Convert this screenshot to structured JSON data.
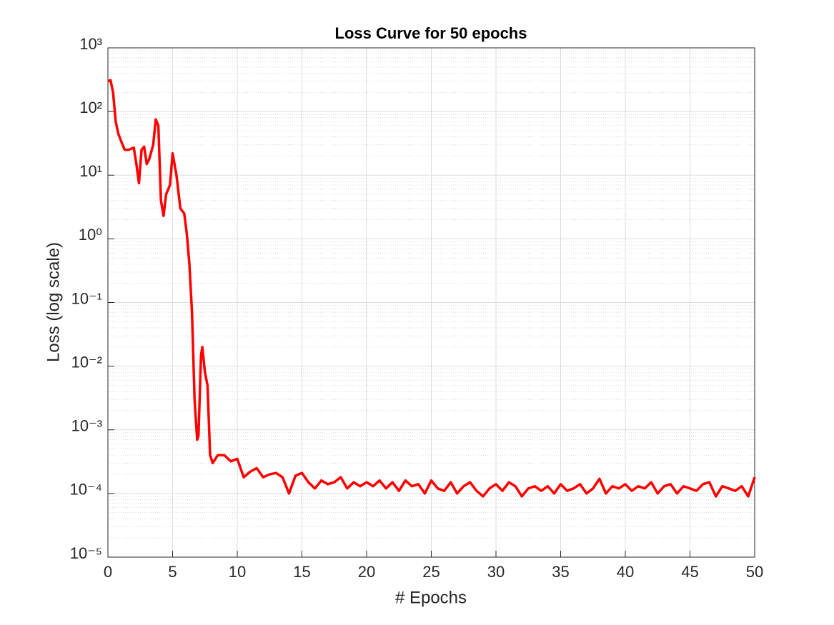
{
  "chart_data": {
    "type": "line",
    "title": "Loss Curve for 50 epochs",
    "x_label": "# Epochs",
    "y_label": "Loss (log scale)",
    "log_y": true,
    "grid": true,
    "minor_grid": true,
    "xlim": [
      0,
      50
    ],
    "xticks": [
      0,
      5,
      10,
      15,
      20,
      25,
      30,
      35,
      40,
      45,
      50
    ],
    "ylim": [
      1e-05,
      1000
    ],
    "yticks": [
      {
        "value": 1e-05,
        "label": "10⁻⁵"
      },
      {
        "value": 0.0001,
        "label": "10⁻⁴"
      },
      {
        "value": 0.001,
        "label": "10⁻³"
      },
      {
        "value": 0.01,
        "label": "10⁻²"
      },
      {
        "value": 0.1,
        "label": "10⁻¹"
      },
      {
        "value": 1,
        "label": "10⁰"
      },
      {
        "value": 10,
        "label": "10¹"
      },
      {
        "value": 100,
        "label": "10²"
      },
      {
        "value": 1000,
        "label": "10³"
      }
    ],
    "series": [
      {
        "color": "#ff0000",
        "x": [
          0,
          0.2,
          0.4,
          0.6,
          0.8,
          1.0,
          1.3,
          1.6,
          2.0,
          2.2,
          2.4,
          2.6,
          2.8,
          3.0,
          3.2,
          3.5,
          3.7,
          3.9,
          4.1,
          4.3,
          4.5,
          4.8,
          5.0,
          5.3,
          5.6,
          5.9,
          6.1,
          6.3,
          6.5,
          6.7,
          6.9,
          7.0,
          7.2,
          7.3,
          7.5,
          7.7,
          7.9,
          8.1,
          8.5,
          9.0,
          9.5,
          10,
          10.5,
          11,
          11.5,
          12,
          12.5,
          13,
          13.5,
          14,
          14.5,
          15,
          15.5,
          16,
          16.5,
          17,
          17.5,
          18,
          18.5,
          19,
          19.5,
          20,
          20.5,
          21,
          21.5,
          22,
          22.5,
          23,
          23.5,
          24,
          24.5,
          25,
          25.5,
          26,
          26.5,
          27,
          27.5,
          28,
          28.5,
          29,
          29.5,
          30,
          30.5,
          31,
          31.5,
          32,
          32.5,
          33,
          33.5,
          34,
          34.5,
          35,
          35.5,
          36,
          36.5,
          37,
          37.5,
          38,
          38.5,
          39,
          39.5,
          40,
          40.5,
          41,
          41.5,
          42,
          42.5,
          43,
          43.5,
          44,
          44.5,
          45,
          45.5,
          46,
          46.5,
          47,
          47.5,
          48,
          48.5,
          49,
          49.5,
          50
        ],
        "values": [
          300,
          310,
          200,
          70,
          45,
          35,
          25,
          25,
          27,
          15,
          7.5,
          25,
          28,
          15,
          18,
          30,
          75,
          60,
          4,
          2.3,
          5,
          7,
          22,
          10,
          3,
          2.5,
          1.2,
          0.4,
          0.07,
          0.003,
          0.0007,
          0.0008,
          0.015,
          0.02,
          0.008,
          0.005,
          0.0004,
          0.0003,
          0.0004,
          0.0004,
          0.00032,
          0.00035,
          0.00018,
          0.00022,
          0.00025,
          0.00018,
          0.0002,
          0.00021,
          0.00018,
          0.0001,
          0.00019,
          0.00021,
          0.00015,
          0.00012,
          0.00016,
          0.00014,
          0.00015,
          0.00018,
          0.00012,
          0.00015,
          0.00013,
          0.00015,
          0.00013,
          0.00016,
          0.00012,
          0.00015,
          0.00011,
          0.00016,
          0.00013,
          0.00014,
          0.0001,
          0.00016,
          0.00012,
          0.00011,
          0.00015,
          0.0001,
          0.00013,
          0.00015,
          0.00011,
          9e-05,
          0.00012,
          0.00014,
          0.00011,
          0.00015,
          0.00013,
          9e-05,
          0.00012,
          0.00013,
          0.00011,
          0.00013,
          0.0001,
          0.00014,
          0.00011,
          0.00012,
          0.00014,
          0.0001,
          0.00012,
          0.00017,
          0.0001,
          0.00013,
          0.00012,
          0.00014,
          0.00011,
          0.00013,
          0.00012,
          0.00015,
          0.0001,
          0.00013,
          0.00014,
          0.0001,
          0.00013,
          0.00012,
          0.00011,
          0.00014,
          0.00015,
          9e-05,
          0.00013,
          0.00012,
          0.00011,
          0.00013,
          9e-05,
          0.00018
        ]
      }
    ]
  }
}
